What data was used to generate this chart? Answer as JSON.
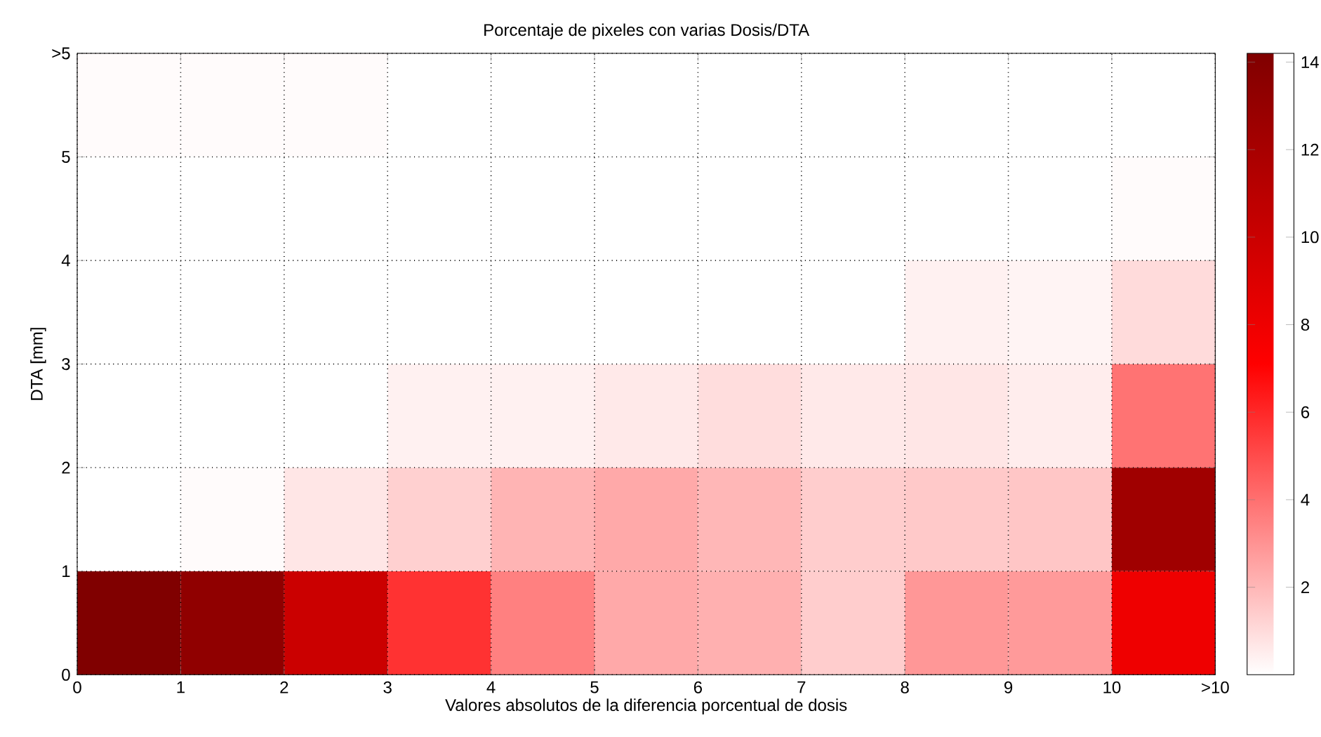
{
  "chart_data": {
    "type": "heatmap",
    "title": "Porcentaje de pixeles con varias Dosis/DTA",
    "xlabel": "Valores absolutos de la diferencia porcentual de dosis",
    "ylabel": "DTA [mm]",
    "xlim": [
      0,
      11
    ],
    "xticks": [
      0,
      1,
      2,
      3,
      4,
      5,
      6,
      7,
      8,
      9,
      10,
      {
        "value": 11,
        "label": ">10"
      }
    ],
    "ylim": [
      0,
      6
    ],
    "yticks": [
      0,
      1,
      2,
      3,
      4,
      5,
      {
        "value": 6,
        "label": ">5"
      }
    ],
    "cells": [
      [
        0.1,
        0.1,
        0.1,
        0,
        0,
        0,
        0,
        0,
        0,
        0,
        0
      ],
      [
        0,
        0,
        0,
        0,
        0,
        0,
        0,
        0,
        0,
        0,
        0.1
      ],
      [
        0,
        0,
        0,
        0,
        0,
        0,
        0,
        0,
        0.4,
        0.3,
        1.0
      ],
      [
        0,
        0,
        0,
        0.4,
        0.4,
        0.6,
        0.95,
        0.6,
        0.7,
        0.5,
        3.9
      ],
      [
        0,
        0.1,
        0.7,
        1.3,
        2.1,
        2.4,
        2.0,
        1.4,
        1.5,
        1.6,
        12.4
      ],
      [
        14.2,
        13.3,
        10.0,
        5.7,
        3.55,
        2.4,
        2.2,
        1.4,
        2.9,
        2.8,
        8.0
      ]
    ],
    "clim": [
      0,
      14.2
    ],
    "cticks": [
      2,
      4,
      6,
      8,
      10,
      12,
      14
    ],
    "grid": true
  }
}
